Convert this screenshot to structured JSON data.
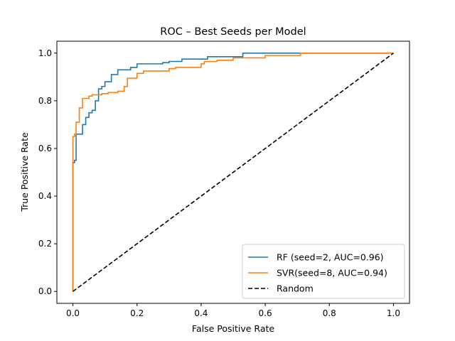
{
  "chart_data": {
    "type": "line",
    "title": "ROC – Best Seeds per Model",
    "xlabel": "False Positive Rate",
    "ylabel": "True Positive Rate",
    "xlim": [
      -0.05,
      1.05
    ],
    "ylim": [
      -0.05,
      1.05
    ],
    "x_ticks": [
      "0.0",
      "0.2",
      "0.4",
      "0.6",
      "0.8",
      "1.0"
    ],
    "y_ticks": [
      "0.0",
      "0.2",
      "0.4",
      "0.6",
      "0.8",
      "1.0"
    ],
    "grid": false,
    "legend_position": "lower-right",
    "series": [
      {
        "name": "RF (seed=2, AUC=0.96)",
        "color": "#1f77b4",
        "style": "solid",
        "x": [
          0.0,
          0.0,
          0.0,
          0.005,
          0.005,
          0.01,
          0.01,
          0.03,
          0.03,
          0.04,
          0.04,
          0.05,
          0.05,
          0.06,
          0.06,
          0.07,
          0.07,
          0.08,
          0.08,
          0.09,
          0.09,
          0.1,
          0.1,
          0.12,
          0.12,
          0.14,
          0.14,
          0.18,
          0.18,
          0.2,
          0.2,
          0.28,
          0.28,
          0.3,
          0.3,
          0.34,
          0.34,
          0.42,
          0.42,
          0.53,
          0.53,
          0.7,
          0.7,
          1.0
        ],
        "y": [
          0.0,
          0.53,
          0.54,
          0.54,
          0.55,
          0.55,
          0.66,
          0.66,
          0.7,
          0.7,
          0.73,
          0.73,
          0.75,
          0.75,
          0.76,
          0.76,
          0.8,
          0.8,
          0.85,
          0.85,
          0.86,
          0.86,
          0.88,
          0.88,
          0.91,
          0.91,
          0.93,
          0.93,
          0.94,
          0.94,
          0.955,
          0.955,
          0.96,
          0.96,
          0.965,
          0.965,
          0.975,
          0.975,
          0.985,
          0.985,
          1.0,
          1.0,
          1.0,
          1.0
        ]
      },
      {
        "name": "SVR(seed=8, AUC=0.94)",
        "color": "#ff7f0e",
        "style": "solid",
        "x": [
          0.0,
          0.0,
          0.0,
          0.005,
          0.005,
          0.01,
          0.01,
          0.02,
          0.02,
          0.03,
          0.03,
          0.05,
          0.05,
          0.06,
          0.06,
          0.07,
          0.07,
          0.09,
          0.09,
          0.11,
          0.11,
          0.14,
          0.14,
          0.16,
          0.16,
          0.17,
          0.17,
          0.2,
          0.2,
          0.22,
          0.22,
          0.3,
          0.3,
          0.32,
          0.32,
          0.4,
          0.4,
          0.41,
          0.41,
          0.45,
          0.45,
          0.5,
          0.5,
          0.6,
          0.6,
          0.71,
          0.71,
          1.0
        ],
        "y": [
          0.0,
          0.53,
          0.65,
          0.65,
          0.66,
          0.66,
          0.71,
          0.71,
          0.77,
          0.77,
          0.81,
          0.81,
          0.82,
          0.82,
          0.825,
          0.825,
          0.825,
          0.825,
          0.83,
          0.83,
          0.835,
          0.835,
          0.84,
          0.84,
          0.86,
          0.86,
          0.895,
          0.895,
          0.915,
          0.915,
          0.925,
          0.925,
          0.935,
          0.935,
          0.94,
          0.94,
          0.955,
          0.955,
          0.965,
          0.965,
          0.97,
          0.97,
          0.98,
          0.98,
          0.99,
          0.99,
          1.0,
          1.0
        ]
      },
      {
        "name": "Random",
        "color": "#000000",
        "style": "dashed",
        "x": [
          0.0,
          1.0
        ],
        "y": [
          0.0,
          1.0
        ]
      }
    ]
  }
}
